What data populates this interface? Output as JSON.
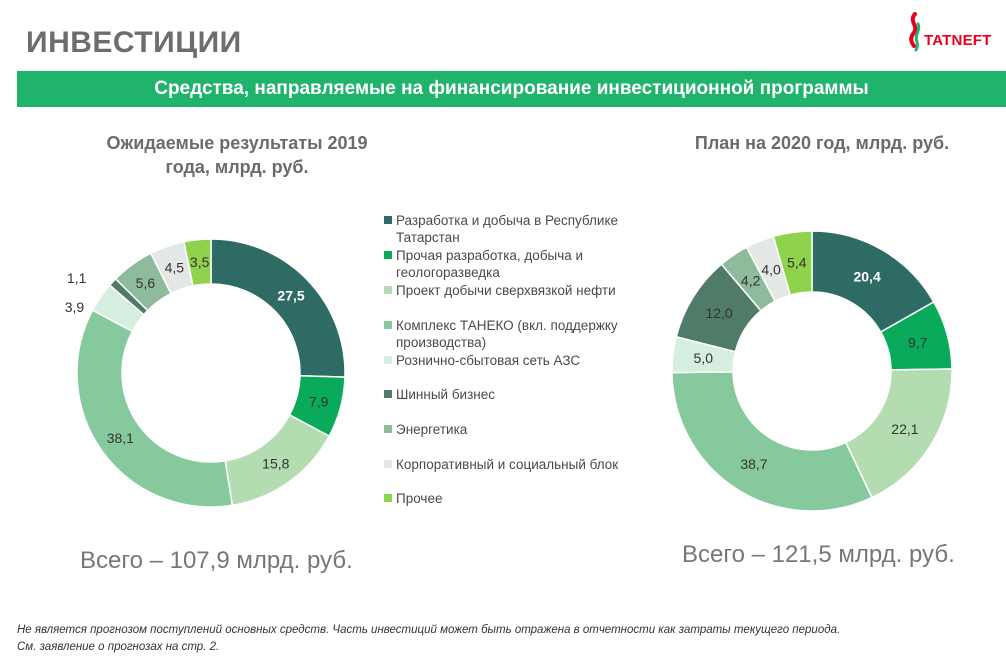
{
  "header": {
    "title": "ИНВЕСТИЦИИ",
    "logo_text": "TATNEFT"
  },
  "banner": {
    "text": "Средства, направляемые на финансирование инвестиционной программы"
  },
  "colors": {
    "banner": "#1fb36b",
    "logo": "#e2001a"
  },
  "legend": {
    "items": [
      {
        "label": "Разработка и добыча в Республике Татарстан",
        "color": "#2e6b64"
      },
      {
        "label": "Прочая разработка, добыча и геологоразведка",
        "color": "#0aaa5b"
      },
      {
        "label": "Проект добычи сверхвязкой нефти",
        "color": "#b3ddb0"
      },
      {
        "label": "Комплекс ТАНЕКО (вкл. поддержку производства)",
        "color": "#86c99c"
      },
      {
        "label": "Рознично-сбытовая сеть АЗС",
        "color": "#d5eedf"
      },
      {
        "label": "Шинный бизнес",
        "color": "#517b69"
      },
      {
        "label": "Энергетика",
        "color": "#8dbb9c"
      },
      {
        "label": "Корпоративный и социальный блок",
        "color": "#e3e8e6"
      },
      {
        "label": "Прочее",
        "color": "#8fd24c"
      }
    ]
  },
  "chart_data": [
    {
      "type": "pie",
      "variant": "donut",
      "title": "Ожидаемые результаты 2019 года, млрд. руб.",
      "categories": [
        "Разработка и добыча в Республике Татарстан",
        "Прочая разработка, добыча и геологоразведка",
        "Проект добычи сверхвязкой нефти",
        "Комплекс ТАНЕКО (вкл. поддержку производства)",
        "Рознично-сбытовая сеть АЗС",
        "Шинный бизнес",
        "Энергетика",
        "Корпоративный и социальный блок",
        "Прочее"
      ],
      "values": [
        27.5,
        7.9,
        15.8,
        38.1,
        3.9,
        1.1,
        5.6,
        4.5,
        3.5
      ],
      "value_labels": [
        "27,5",
        "7,9",
        "15,8",
        "38,1",
        "3,9",
        "1,1",
        "5,6",
        "4,5",
        "3,5"
      ],
      "total_text": "Всего – 107,9 млрд. руб."
    },
    {
      "type": "pie",
      "variant": "donut",
      "title": "План на 2020 год, млрд. руб.",
      "categories": [
        "Разработка и добыча в Республике Татарстан",
        "Прочая разработка, добыча и геологоразведка",
        "Проект добычи сверхвязкой нефти",
        "Комплекс ТАНЕКО (вкл. поддержку производства)",
        "Рознично-сбытовая сеть АЗС",
        "Шинный бизнес",
        "Энергетика",
        "Корпоративный и социальный блок",
        "Прочее"
      ],
      "values": [
        20.4,
        9.7,
        22.1,
        38.7,
        5.0,
        12.0,
        4.2,
        4.0,
        5.4
      ],
      "value_labels": [
        "20,4",
        "9,7",
        "22,1",
        "38,7",
        "5,0",
        "12,0",
        "4,2",
        "4,0",
        "5,4"
      ],
      "total_text": "Всего – 121,5 млрд. руб."
    }
  ],
  "footnote": {
    "line1": "Не является прогнозом поступлений основных средств. Часть инвестиций может быть отражена в отчетности как затраты текущего периода.",
    "line2": "См. заявление о прогнозах на стр. 2."
  }
}
